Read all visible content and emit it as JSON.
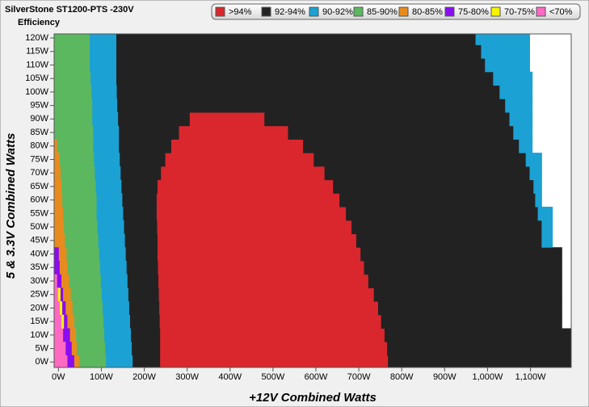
{
  "chart_data": {
    "type": "region-map",
    "title": "SilverStone ST1200-PTS -230V",
    "subtitle": "Efficiency",
    "x_label": "+12V Combined Watts",
    "y_label": "5 & 3.3V Combined Watts",
    "xlim": [
      -10,
      1195
    ],
    "ylim": [
      -2,
      121.5
    ],
    "xticks": [
      {
        "value": 0,
        "label": "0W"
      },
      {
        "value": 100,
        "label": "100W"
      },
      {
        "value": 200,
        "label": "200W"
      },
      {
        "value": 300,
        "label": "300W"
      },
      {
        "value": 400,
        "label": "400W"
      },
      {
        "value": 500,
        "label": "500W"
      },
      {
        "value": 600,
        "label": "600W"
      },
      {
        "value": 700,
        "label": "700W"
      },
      {
        "value": 800,
        "label": "800W"
      },
      {
        "value": 900,
        "label": "900W"
      },
      {
        "value": 1000,
        "label": "1,000W"
      },
      {
        "value": 1100,
        "label": "1,100W"
      }
    ],
    "yticks": [
      {
        "value": 0,
        "label": "0W"
      },
      {
        "value": 5,
        "label": "5W"
      },
      {
        "value": 10,
        "label": "10W"
      },
      {
        "value": 15,
        "label": "15W"
      },
      {
        "value": 20,
        "label": "20W"
      },
      {
        "value": 25,
        "label": "25W"
      },
      {
        "value": 30,
        "label": "30W"
      },
      {
        "value": 35,
        "label": "35W"
      },
      {
        "value": 40,
        "label": "40W"
      },
      {
        "value": 45,
        "label": "45W"
      },
      {
        "value": 50,
        "label": "50W"
      },
      {
        "value": 55,
        "label": "55W"
      },
      {
        "value": 60,
        "label": "60W"
      },
      {
        "value": 65,
        "label": "65W"
      },
      {
        "value": 70,
        "label": "70W"
      },
      {
        "value": 75,
        "label": "75W"
      },
      {
        "value": 80,
        "label": "80W"
      },
      {
        "value": 85,
        "label": "85W"
      },
      {
        "value": 90,
        "label": "90W"
      },
      {
        "value": 95,
        "label": "95W"
      },
      {
        "value": 100,
        "label": "100W"
      },
      {
        "value": 105,
        "label": "105W"
      },
      {
        "value": 110,
        "label": "110W"
      },
      {
        "value": 115,
        "label": "115W"
      },
      {
        "value": 120,
        "label": "120W"
      }
    ],
    "rows": [
      0,
      5,
      10,
      15,
      20,
      25,
      30,
      35,
      40,
      45,
      50,
      55,
      60,
      65,
      70,
      75,
      80,
      85,
      90,
      95,
      100,
      105,
      110,
      115,
      120
    ],
    "series": [
      {
        "name": ">94%",
        "color": "#d9272d",
        "spans": [
          [
            [
              236,
              768
            ]
          ],
          [
            [
              236,
              766
            ]
          ],
          [
            [
              236,
              760
            ]
          ],
          [
            [
              235,
              752
            ]
          ],
          [
            [
              234,
              745
            ]
          ],
          [
            [
              233,
              735
            ]
          ],
          [
            [
              232,
              722
            ]
          ],
          [
            [
              231,
              712
            ]
          ],
          [
            [
              230,
              704
            ]
          ],
          [
            [
              230,
              694
            ]
          ],
          [
            [
              229,
              683
            ]
          ],
          [
            [
              228,
              670
            ]
          ],
          [
            [
              228,
              655
            ]
          ],
          [
            [
              230,
              640
            ]
          ],
          [
            [
              238,
              620
            ]
          ],
          [
            [
              248,
              595
            ]
          ],
          [
            [
              262,
              570
            ]
          ],
          [
            [
              280,
              535
            ]
          ],
          [
            [
              305,
              480
            ]
          ],
          [],
          [],
          [],
          [],
          [],
          []
        ]
      },
      {
        "name": "92-94%",
        "color": "#222222",
        "spans": [
          [
            [
              172,
              236
            ],
            [
              768,
              1195
            ]
          ],
          [
            [
              170,
              236
            ],
            [
              766,
              1195
            ]
          ],
          [
            [
              168,
              236
            ],
            [
              760,
              1195
            ]
          ],
          [
            [
              166,
              235
            ],
            [
              752,
              1173
            ]
          ],
          [
            [
              164,
              234
            ],
            [
              745,
              1173
            ]
          ],
          [
            [
              162,
              233
            ],
            [
              735,
              1173
            ]
          ],
          [
            [
              160,
              232
            ],
            [
              722,
              1173
            ]
          ],
          [
            [
              158,
              231
            ],
            [
              712,
              1173
            ]
          ],
          [
            [
              156,
              230
            ],
            [
              704,
              1173
            ]
          ],
          [
            [
              154,
              230
            ],
            [
              694,
              1126
            ]
          ],
          [
            [
              152,
              229
            ],
            [
              683,
              1126
            ]
          ],
          [
            [
              150,
              228
            ],
            [
              670,
              1117
            ]
          ],
          [
            [
              148,
              228
            ],
            [
              655,
              1111
            ]
          ],
          [
            [
              146,
              230
            ],
            [
              640,
              1107
            ]
          ],
          [
            [
              144,
              238
            ],
            [
              620,
              1098
            ]
          ],
          [
            [
              142,
              248
            ],
            [
              595,
              1089
            ]
          ],
          [
            [
              140,
              262
            ],
            [
              570,
              1073
            ]
          ],
          [
            [
              140,
              280
            ],
            [
              535,
              1060
            ]
          ],
          [
            [
              138,
              305
            ],
            [
              480,
              1051
            ]
          ],
          [
            [
              136,
              1041
            ]
          ],
          [
            [
              135,
              1028
            ]
          ],
          [
            [
              134,
              1013
            ]
          ],
          [
            [
              134,
              994
            ]
          ],
          [
            [
              134,
              985
            ]
          ],
          [
            [
              134,
              972
            ]
          ]
        ]
      },
      {
        "name": "90-92%",
        "color": "#1ba1d3",
        "spans": [
          [
            [
              110,
              172
            ]
          ],
          [
            [
              108,
              170
            ]
          ],
          [
            [
              106,
              168
            ]
          ],
          [
            [
              104,
              166
            ]
          ],
          [
            [
              102,
              164
            ]
          ],
          [
            [
              100,
              162
            ]
          ],
          [
            [
              98,
              160
            ]
          ],
          [
            [
              96,
              158
            ]
          ],
          [
            [
              94,
              156
            ]
          ],
          [
            [
              92,
              154
            ],
            [
              1126,
              1151
            ]
          ],
          [
            [
              90,
              152
            ],
            [
              1126,
              1151
            ]
          ],
          [
            [
              88,
              150
            ],
            [
              1117,
              1151
            ]
          ],
          [
            [
              88,
              148
            ],
            [
              1111,
              1126
            ]
          ],
          [
            [
              86,
              146
            ],
            [
              1107,
              1126
            ]
          ],
          [
            [
              84,
              144
            ],
            [
              1098,
              1126
            ]
          ],
          [
            [
              82,
              142
            ],
            [
              1089,
              1126
            ]
          ],
          [
            [
              80,
              140
            ],
            [
              1073,
              1104
            ]
          ],
          [
            [
              80,
              140
            ],
            [
              1060,
              1104
            ]
          ],
          [
            [
              78,
              138
            ],
            [
              1051,
              1104
            ]
          ],
          [
            [
              78,
              136
            ],
            [
              1041,
              1104
            ]
          ],
          [
            [
              76,
              135
            ],
            [
              1028,
              1104
            ]
          ],
          [
            [
              74,
              134
            ],
            [
              1013,
              1104
            ]
          ],
          [
            [
              72,
              134
            ],
            [
              994,
              1098
            ]
          ],
          [
            [
              72,
              134
            ],
            [
              985,
              1098
            ]
          ],
          [
            [
              72,
              134
            ],
            [
              972,
              1098
            ]
          ]
        ]
      },
      {
        "name": "85-90%",
        "color": "#5cb85f",
        "spans": [
          [
            [
              48,
              110
            ]
          ],
          [
            [
              42,
              108
            ]
          ],
          [
            [
              40,
              106
            ]
          ],
          [
            [
              36,
              104
            ]
          ],
          [
            [
              32,
              102
            ]
          ],
          [
            [
              28,
              100
            ]
          ],
          [
            [
              24,
              98
            ]
          ],
          [
            [
              20,
              96
            ]
          ],
          [
            [
              18,
              94
            ]
          ],
          [
            [
              14,
              92
            ]
          ],
          [
            [
              12,
              90
            ]
          ],
          [
            [
              10,
              88
            ]
          ],
          [
            [
              8,
              88
            ]
          ],
          [
            [
              6,
              86
            ]
          ],
          [
            [
              4,
              84
            ]
          ],
          [
            [
              2,
              82
            ]
          ],
          [
            [
              -4,
              80
            ]
          ],
          [
            [
              -10,
              80
            ]
          ],
          [
            [
              -10,
              78
            ]
          ],
          [
            [
              -10,
              78
            ]
          ],
          [
            [
              -10,
              76
            ]
          ],
          [
            [
              -10,
              74
            ]
          ],
          [
            [
              -10,
              72
            ]
          ],
          [
            [
              -10,
              72
            ]
          ],
          [
            [
              -10,
              72
            ]
          ]
        ]
      },
      {
        "name": "80-85%",
        "color": "#e88b1e",
        "spans": [
          [
            [
              36,
              48
            ]
          ],
          [
            [
              30,
              42
            ]
          ],
          [
            [
              26,
              40
            ]
          ],
          [
            [
              20,
              36
            ]
          ],
          [
            [
              16,
              32
            ]
          ],
          [
            [
              10,
              28
            ]
          ],
          [
            [
              6,
              24
            ]
          ],
          [
            [
              2,
              20
            ]
          ],
          [
            [
              0,
              18
            ]
          ],
          [
            [
              -10,
              14
            ]
          ],
          [
            [
              -10,
              12
            ]
          ],
          [
            [
              -10,
              10
            ]
          ],
          [
            [
              -10,
              8
            ]
          ],
          [
            [
              -10,
              6
            ]
          ],
          [
            [
              -10,
              4
            ]
          ],
          [
            [
              -10,
              2
            ]
          ],
          [
            [
              -10,
              -4
            ]
          ],
          [],
          [],
          [],
          [],
          [],
          [],
          [],
          []
        ]
      },
      {
        "name": "75-80%",
        "color": "#8a0cf0",
        "spans": [
          [
            [
              20,
              36
            ]
          ],
          [
            [
              16,
              30
            ]
          ],
          [
            [
              10,
              26
            ]
          ],
          [
            [
              12,
              20
            ]
          ],
          [
            [
              8,
              16
            ]
          ],
          [
            [
              4,
              10
            ]
          ],
          [
            [
              -4,
              6
            ]
          ],
          [
            [
              -10,
              2
            ]
          ],
          [
            [
              -10,
              0
            ]
          ],
          [],
          [],
          [],
          [],
          [],
          [],
          [],
          [],
          [],
          [],
          [],
          [],
          [],
          [],
          [],
          []
        ]
      },
      {
        "name": "70-75%",
        "color": "#f5f500",
        "spans": [
          [],
          [],
          [],
          [
            [
              6,
              12
            ]
          ],
          [
            [
              2,
              8
            ]
          ],
          [
            [
              -2,
              4
            ]
          ],
          [],
          [],
          [],
          [],
          [],
          [],
          [],
          [],
          [],
          [],
          [],
          [],
          [],
          [],
          [],
          [],
          [],
          [],
          []
        ]
      },
      {
        "name": "<70%",
        "color": "#ff69c4",
        "spans": [
          [
            [
              -10,
              20
            ]
          ],
          [
            [
              -10,
              16
            ]
          ],
          [
            [
              -10,
              10
            ]
          ],
          [
            [
              -10,
              6
            ]
          ],
          [
            [
              -10,
              2
            ]
          ],
          [
            [
              -10,
              -2
            ]
          ],
          [
            [
              -10,
              -4
            ]
          ],
          [],
          [],
          [],
          [],
          [],
          [],
          [],
          [],
          [],
          [],
          [],
          [],
          [],
          [],
          [],
          [],
          [],
          []
        ]
      }
    ]
  }
}
